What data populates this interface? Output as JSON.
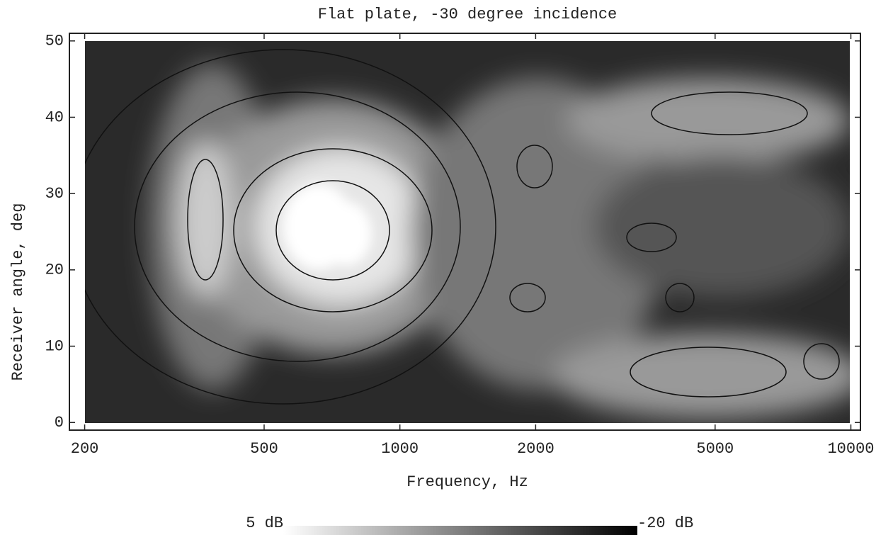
{
  "chart_data": {
    "type": "contour",
    "title": "Flat plate, -30 degree incidence",
    "x_label": "Frequency, Hz",
    "y_label": "Receiver angle, deg",
    "x_log": true,
    "xlim": [
      185,
      10500
    ],
    "xticks": [
      200,
      500,
      1000,
      2000,
      5000,
      10000
    ],
    "ylim": [
      -1,
      51
    ],
    "yticks": [
      0,
      10,
      20,
      30,
      40,
      50
    ],
    "colorbar": {
      "ticks": [
        {
          "value": 5,
          "label": "5 dB"
        },
        {
          "value": -20,
          "label": "-20 dB"
        }
      ]
    }
  }
}
